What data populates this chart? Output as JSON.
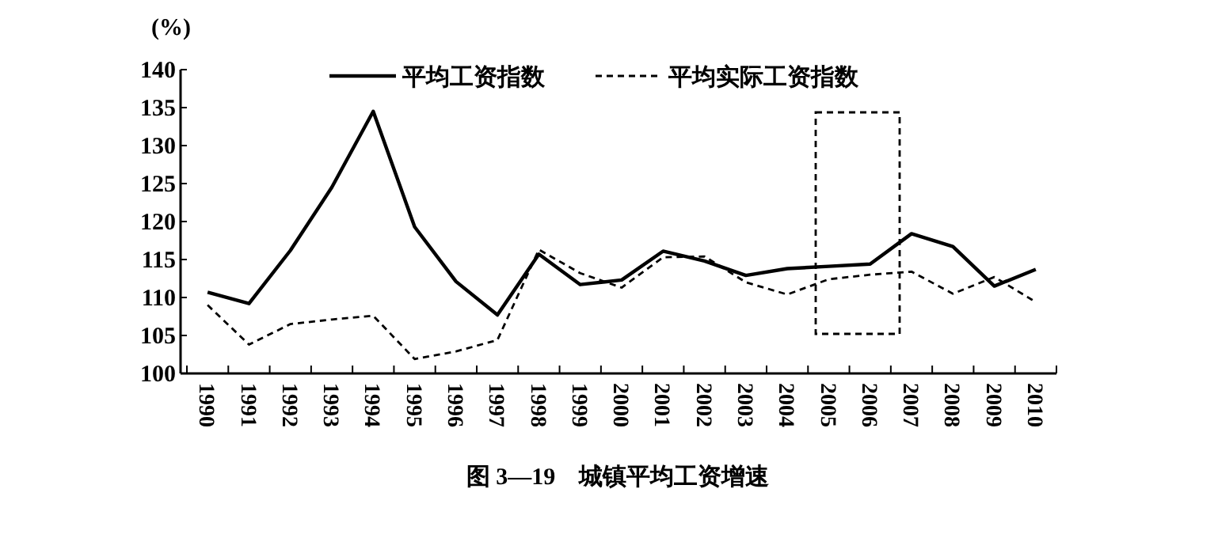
{
  "chart_data": {
    "type": "line",
    "title": "图 3—19　城镇平均工资增速",
    "ylabel": "(%)",
    "categories": [
      "1990",
      "1991",
      "1992",
      "1993",
      "1994",
      "1995",
      "1996",
      "1997",
      "1998",
      "1999",
      "2000",
      "2001",
      "2002",
      "2003",
      "2004",
      "2005",
      "2006",
      "2007",
      "2008",
      "2009",
      "2010"
    ],
    "series": [
      {
        "name": "平均工资指数",
        "color": "#000000",
        "line_style": "solid",
        "values": [
          110.7,
          109.2,
          116.2,
          124.5,
          134.5,
          119.3,
          112.1,
          107.7,
          115.7,
          111.7,
          112.3,
          116.1,
          114.8,
          112.9,
          113.8,
          114.1,
          114.4,
          118.4,
          116.7,
          111.5,
          113.7
        ]
      },
      {
        "name": "平均实际工资指数",
        "color": "#000000",
        "line_style": "dashed",
        "values": [
          109.0,
          103.8,
          106.5,
          107.1,
          107.6,
          101.9,
          102.9,
          104.4,
          116.3,
          113.2,
          111.3,
          115.3,
          115.4,
          112.0,
          110.4,
          112.4,
          113.0,
          113.4,
          110.5,
          112.7,
          109.4
        ]
      }
    ],
    "ylim": [
      100,
      140
    ],
    "yticks": [
      100,
      105,
      110,
      115,
      120,
      125,
      130,
      135,
      140
    ],
    "grid": false,
    "legend": "top",
    "marker": "none"
  }
}
